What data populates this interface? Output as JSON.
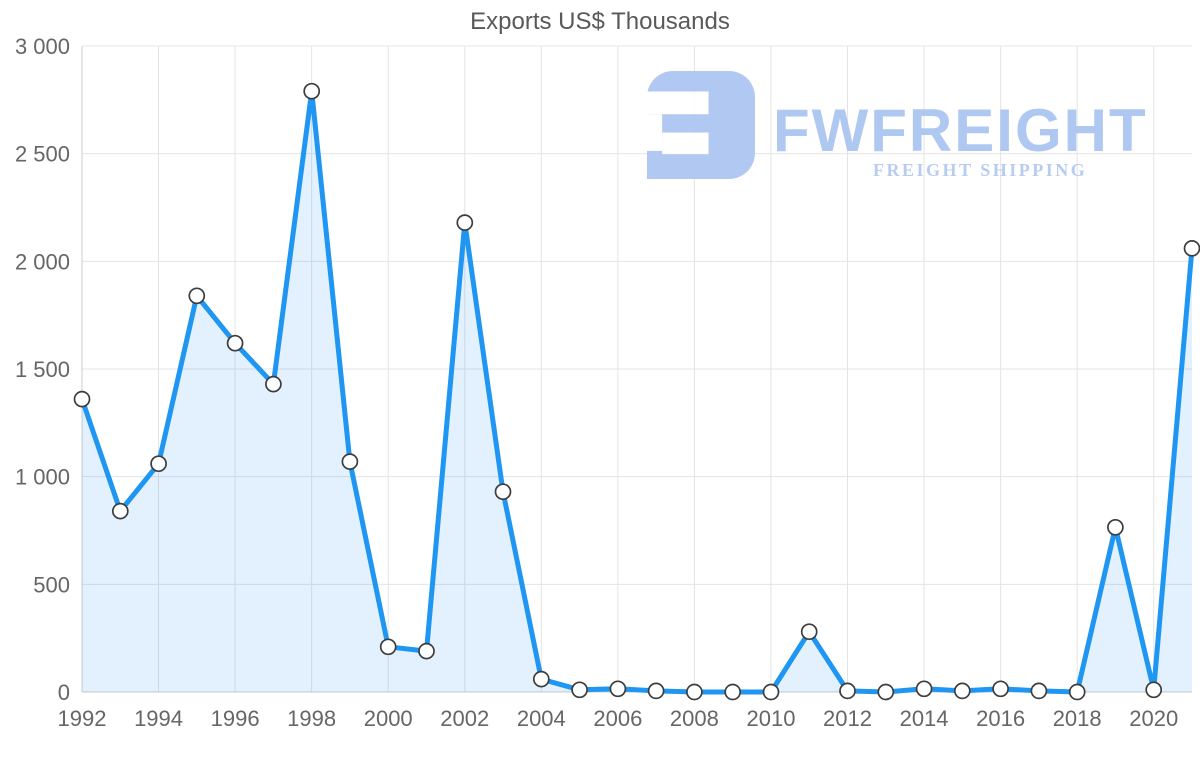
{
  "chart_data": {
    "type": "area",
    "title": "Exports US$ Thousands",
    "xlabel": "",
    "ylabel": "",
    "x": [
      1992,
      1993,
      1994,
      1995,
      1996,
      1997,
      1998,
      1999,
      2000,
      2001,
      2002,
      2003,
      2004,
      2005,
      2006,
      2007,
      2008,
      2009,
      2010,
      2011,
      2012,
      2013,
      2014,
      2015,
      2016,
      2017,
      2018,
      2019,
      2020,
      2021
    ],
    "values": [
      1360,
      840,
      1060,
      1840,
      1620,
      1430,
      2790,
      1070,
      210,
      190,
      2180,
      930,
      60,
      10,
      15,
      5,
      0,
      0,
      0,
      280,
      5,
      0,
      15,
      5,
      15,
      5,
      0,
      765,
      10,
      2060
    ],
    "ylim": [
      0,
      3000
    ],
    "y_ticks": [
      {
        "value": 0,
        "label": "0"
      },
      {
        "value": 500,
        "label": "500"
      },
      {
        "value": 1000,
        "label": "1 000"
      },
      {
        "value": 1500,
        "label": "1 500"
      },
      {
        "value": 2000,
        "label": "2 000"
      },
      {
        "value": 2500,
        "label": "2 500"
      },
      {
        "value": 3000,
        "label": "3 000"
      }
    ],
    "x_ticks": [
      1992,
      1994,
      1996,
      1998,
      2000,
      2002,
      2004,
      2006,
      2008,
      2010,
      2012,
      2014,
      2016,
      2018,
      2020
    ],
    "grid": true,
    "legend": "none",
    "colors": {
      "line": "#1e96f2",
      "fill": "rgba(30,150,242,0.13)",
      "grid": "#e4e4e4",
      "axis": "#cccccc",
      "tick_label": "#666666",
      "title": "#58595b",
      "marker_fill": "#ffffff",
      "marker_stroke": "#3d3d3d"
    }
  },
  "watermark": {
    "brand": "FWFREIGHT",
    "tagline": "FREIGHT SHIPPING",
    "brand_color": "#a9c4f0",
    "tagline_color": "#b2c8f0",
    "icon_color": "#abc5f1"
  }
}
